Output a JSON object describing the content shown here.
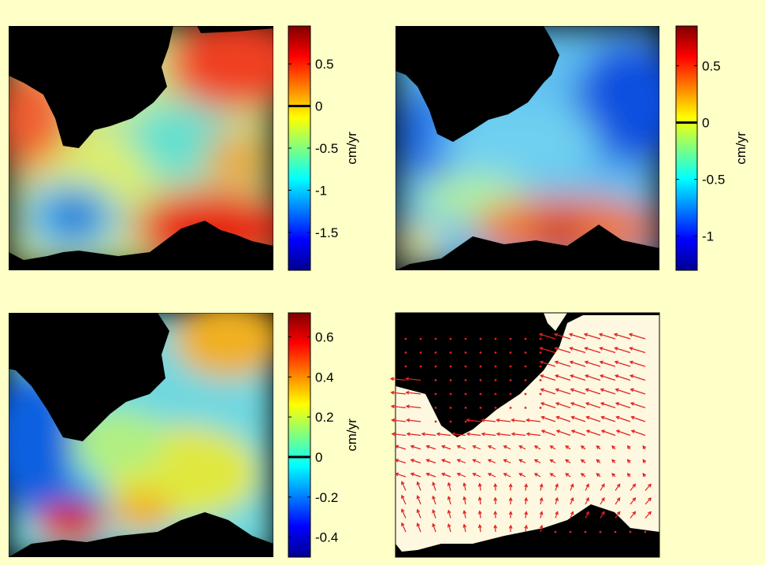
{
  "figure": {
    "background": "#FFFFC8",
    "land_color": "#000000",
    "panel_frame_color": "#000000",
    "vector_color": "#E02020",
    "vector_panel_water_color": "#FFF8E0"
  },
  "chart_data": [
    {
      "type": "heatmap",
      "panel": "top-left",
      "colormap": "jet",
      "colorbar": {
        "label": "cm/yr",
        "range": [
          -1.95,
          0.95
        ],
        "ticks": [
          {
            "value": 0.5,
            "label": "0.5"
          },
          {
            "value": 0,
            "label": "0"
          },
          {
            "value": -0.5,
            "label": "-0.5"
          },
          {
            "value": -1,
            "label": "-1"
          },
          {
            "value": -1.5,
            "label": "-1.5"
          }
        ],
        "zero_line": true
      },
      "features": [
        {
          "region": "west coast",
          "value": 0.6
        },
        {
          "region": "north-east",
          "value": 0.7
        },
        {
          "region": "south-east",
          "value": 0.8
        },
        {
          "region": "centre",
          "value": -0.4
        },
        {
          "region": "south-west minimum",
          "value": -1.8
        }
      ]
    },
    {
      "type": "heatmap",
      "panel": "top-right",
      "colormap": "jet",
      "colorbar": {
        "label": "cm/yr",
        "range": [
          -1.3,
          0.85
        ],
        "ticks": [
          {
            "value": 0.5,
            "label": "0.5"
          },
          {
            "value": 0,
            "label": "0"
          },
          {
            "value": -0.5,
            "label": "-0.5"
          },
          {
            "value": -1,
            "label": "-1"
          }
        ],
        "zero_line": true
      },
      "features": [
        {
          "region": "north",
          "value": -1.0
        },
        {
          "region": "centre",
          "value": -0.6
        },
        {
          "region": "south coast",
          "value": 0.7
        },
        {
          "region": "south-west",
          "value": 0.2
        }
      ]
    },
    {
      "type": "heatmap",
      "panel": "bottom-left",
      "colormap": "jet",
      "colorbar": {
        "label": "cm/yr",
        "range": [
          -0.5,
          0.72
        ],
        "ticks": [
          {
            "value": 0.6,
            "label": "0.6"
          },
          {
            "value": 0.4,
            "label": "0.4"
          },
          {
            "value": 0.2,
            "label": "0.2"
          },
          {
            "value": 0,
            "label": "0"
          },
          {
            "value": -0.2,
            "label": "-0.2"
          },
          {
            "value": -0.4,
            "label": "-0.4"
          }
        ],
        "zero_line": true
      },
      "features": [
        {
          "region": "west",
          "value": -0.4
        },
        {
          "region": "south-west maximum",
          "value": 0.65
        },
        {
          "region": "north-east",
          "value": 0.4
        },
        {
          "region": "centre",
          "value": 0.15
        }
      ]
    },
    {
      "type": "vector-field",
      "panel": "bottom-right",
      "description_arrows": "westward flow in centre, south-westward in north-east"
    }
  ]
}
